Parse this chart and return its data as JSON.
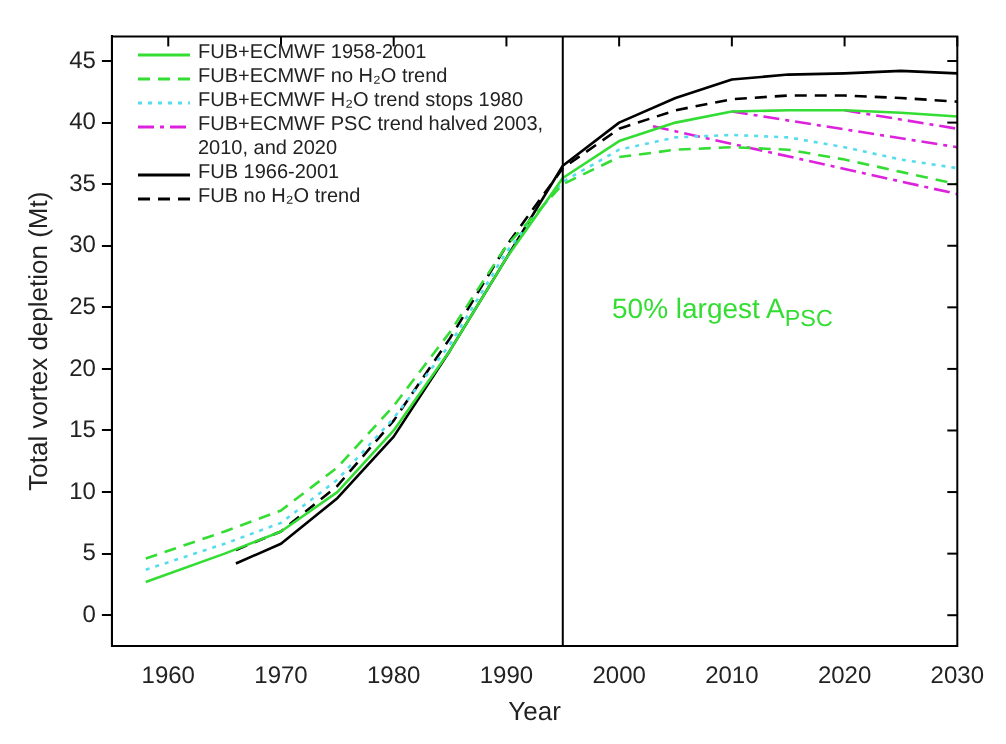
{
  "chart_data": {
    "type": "line",
    "xlabel": "Year",
    "ylabel": "Total vortex depletion (Mt)",
    "xlim": [
      1955,
      2030
    ],
    "ylim": [
      -2.5,
      47
    ],
    "xticks": [
      1960,
      1970,
      1980,
      1990,
      2000,
      2010,
      2020,
      2030
    ],
    "yticks": [
      0,
      5,
      10,
      15,
      20,
      25,
      30,
      35,
      40,
      45
    ],
    "grid": false,
    "legend": "top left",
    "marker": "none",
    "annotations": [
      "50% largest A$_{PSC}$"
    ],
    "ref_lines": [
      {
        "axis": "x",
        "value": 1995,
        "color": "#000000"
      }
    ],
    "series": [
      {
        "name": "FUB+ECMWF 1958-2001",
        "color": "#33dd33",
        "line_style": "solid",
        "x": [
          1958,
          1965,
          1970,
          1975,
          1980,
          1985,
          1990,
          1995,
          2000,
          2005,
          2010,
          2015,
          2020,
          2025,
          2030
        ],
        "values": [
          2.7,
          5,
          6.8,
          10,
          15,
          21.5,
          29,
          35.5,
          38.5,
          40,
          40.9,
          41,
          41,
          40.8,
          40.5
        ]
      },
      {
        "name": "FUB+ECMWF no H₂O trend",
        "color": "#33dd33",
        "line_style": "dashed",
        "x": [
          1958,
          1965,
          1970,
          1975,
          1980,
          1985,
          1990,
          1995,
          2000,
          2005,
          2010,
          2015,
          2020,
          2025,
          2030
        ],
        "values": [
          4.6,
          6.8,
          8.5,
          12,
          17,
          23,
          30,
          35,
          37.2,
          37.8,
          38,
          37.8,
          37,
          36,
          35
        ]
      },
      {
        "name": "FUB+ECMWF H₂O trend stops 1980",
        "color": "#55ddee",
        "line_style": "dotted",
        "x": [
          1958,
          1965,
          1970,
          1975,
          1980,
          1985,
          1990,
          1995,
          2000,
          2005,
          2010,
          2015,
          2020,
          2025,
          2030
        ],
        "values": [
          3.7,
          5.8,
          7.5,
          11,
          16,
          22,
          29.5,
          35.2,
          37.8,
          38.8,
          39,
          38.8,
          38,
          37,
          36.3
        ]
      },
      {
        "name": "FUB+ECMWF PSC trend halved 2003, 2010, and 2020",
        "color": "#dd22dd",
        "line_style": "dashdot",
        "x": [
          2003,
          2030
        ],
        "values": [
          39.7,
          34.2
        ]
      },
      {
        "color": "#dd22dd",
        "line_style": "dashdot",
        "x": [
          2010,
          2030
        ],
        "values": [
          40.9,
          38
        ]
      },
      {
        "color": "#dd22dd",
        "line_style": "dashdot",
        "x": [
          2020,
          2030
        ],
        "values": [
          41,
          39.5
        ]
      },
      {
        "name": "FUB 1966-2001",
        "color": "#000000",
        "line_style": "solid",
        "x": [
          1966,
          1970,
          1975,
          1980,
          1985,
          1990,
          1995,
          2000,
          2005,
          2010,
          2015,
          2020,
          2025,
          2030
        ],
        "values": [
          4.2,
          5.8,
          9.5,
          14.5,
          21.5,
          29,
          36.5,
          40,
          42,
          43.5,
          43.9,
          44,
          44.2,
          44
        ]
      },
      {
        "name": "FUB no H₂O trend",
        "color": "#000000",
        "line_style": "dashed",
        "x": [
          1966,
          1970,
          1975,
          1980,
          1985,
          1990,
          1995,
          2000,
          2005,
          2010,
          2015,
          2020,
          2025,
          2030
        ],
        "values": [
          5.3,
          6.8,
          10.5,
          15.8,
          22.5,
          30,
          36.3,
          39.5,
          41,
          41.9,
          42.2,
          42.2,
          42,
          41.7
        ]
      }
    ]
  }
}
